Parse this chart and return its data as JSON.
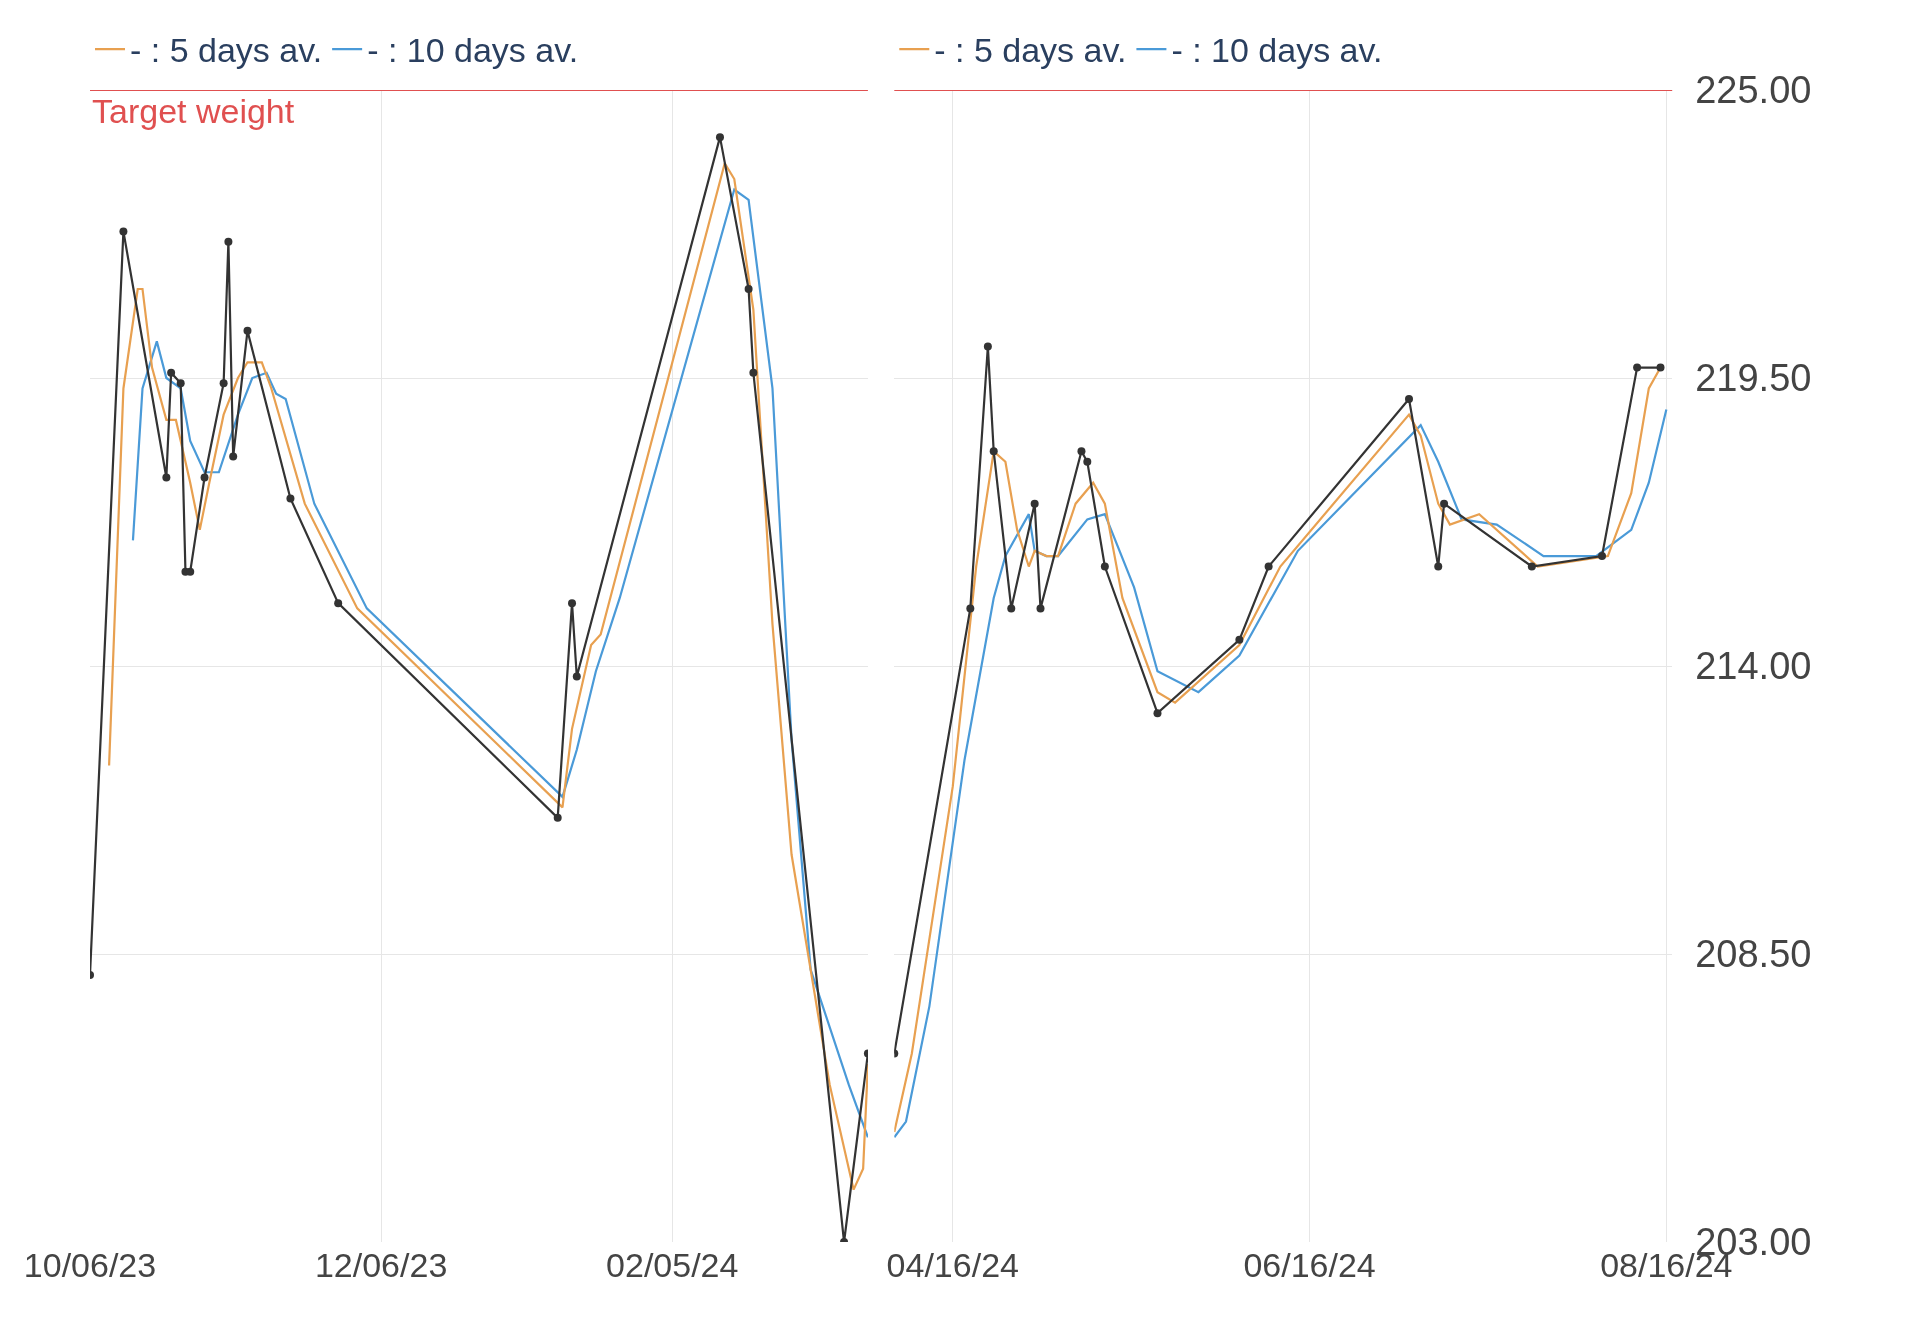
{
  "chart_data": [
    {
      "type": "line",
      "grid": true,
      "legend": "top",
      "tick_labels": "x",
      "line_style": "solid",
      "xlim": [
        "2023-10-06",
        "2024-03-17"
      ],
      "xticks": [
        {
          "value": "2023-10-06",
          "label": "10/06/23"
        },
        {
          "value": "2023-12-06",
          "label": "12/06/23"
        },
        {
          "value": "2024-02-05",
          "label": "02/05/24"
        }
      ],
      "ylim": [
        203,
        225
      ],
      "yticks": [
        {
          "value": 203,
          "label": null
        },
        {
          "value": 208.5,
          "label": null
        },
        {
          "value": 214,
          "label": null
        },
        {
          "value": 219.5,
          "label": null
        },
        {
          "value": 225,
          "label": null
        }
      ],
      "ref_lines": [
        {
          "axis": "y",
          "value": 225,
          "label": "Target weight",
          "color": "#e05050"
        }
      ],
      "series": [
        {
          "color": "#333333",
          "marker": "circle",
          "x": [
            "2023-10-06",
            "2023-10-13",
            "2023-10-22",
            "2023-10-23",
            "2023-10-25",
            "2023-10-26",
            "2023-10-27",
            "2023-10-30",
            "2023-11-03",
            "2023-11-04",
            "2023-11-05",
            "2023-11-08",
            "2023-11-17",
            "2023-11-27",
            "2024-01-12",
            "2024-01-15",
            "2024-01-16",
            "2024-02-15",
            "2024-02-21",
            "2024-02-22",
            "2024-03-12",
            "2024-03-17"
          ],
          "values": [
            208.1,
            222.3,
            217.6,
            219.6,
            219.4,
            215.8,
            215.8,
            217.6,
            219.4,
            222.1,
            218.0,
            220.4,
            217.2,
            215.2,
            211.1,
            215.2,
            213.8,
            224.1,
            221.2,
            219.6,
            203.0,
            206.6
          ]
        },
        {
          "name": "- : 5 days av.",
          "color": "#e8a050",
          "marker": "none",
          "x": [
            "2023-10-10",
            "2023-10-13",
            "2023-10-16",
            "2023-10-17",
            "2023-10-19",
            "2023-10-22",
            "2023-10-24",
            "2023-10-27",
            "2023-10-29",
            "2023-10-31",
            "2023-11-03",
            "2023-11-06",
            "2023-11-08",
            "2023-11-11",
            "2023-11-13",
            "2023-11-20",
            "2023-12-01",
            "2024-01-13",
            "2024-01-15",
            "2024-01-19",
            "2024-01-21",
            "2024-02-16",
            "2024-02-18",
            "2024-02-22",
            "2024-02-26",
            "2024-03-01",
            "2024-03-09",
            "2024-03-14",
            "2024-03-16",
            "2024-03-17"
          ],
          "values": [
            212.1,
            219.3,
            221.2,
            221.2,
            219.7,
            218.7,
            218.7,
            217.5,
            216.6,
            217.5,
            218.8,
            219.5,
            219.8,
            219.8,
            219.3,
            217.1,
            215.1,
            211.3,
            212.8,
            214.4,
            214.6,
            223.6,
            223.3,
            220.8,
            214.8,
            210.4,
            206.0,
            204.0,
            204.4,
            206.4
          ]
        },
        {
          "name": "- : 10 days av.",
          "color": "#4a9ad8",
          "marker": "none",
          "x": [
            "2023-10-15",
            "2023-10-17",
            "2023-10-20",
            "2023-10-22",
            "2023-10-25",
            "2023-10-27",
            "2023-10-30",
            "2023-11-02",
            "2023-11-06",
            "2023-11-09",
            "2023-11-12",
            "2023-11-14",
            "2023-11-16",
            "2023-11-22",
            "2023-12-03",
            "2024-01-13",
            "2024-01-16",
            "2024-01-20",
            "2024-01-25",
            "2024-02-18",
            "2024-02-21",
            "2024-02-26",
            "2024-03-01",
            "2024-03-05",
            "2024-03-13",
            "2024-03-17"
          ],
          "values": [
            216.4,
            219.3,
            220.2,
            219.5,
            219.3,
            218.3,
            217.7,
            217.7,
            218.8,
            219.5,
            219.6,
            219.2,
            219.1,
            217.1,
            215.1,
            211.5,
            212.4,
            213.9,
            215.3,
            223.1,
            222.9,
            219.3,
            212.6,
            208.2,
            206.0,
            205.0
          ]
        }
      ]
    },
    {
      "type": "line",
      "grid": true,
      "legend": "top",
      "line_style": "solid",
      "xlim": [
        "2024-04-06",
        "2024-08-17"
      ],
      "xticks": [
        {
          "value": "2024-04-16",
          "label": "04/16/24"
        },
        {
          "value": "2024-06-16",
          "label": "06/16/24"
        },
        {
          "value": "2024-08-16",
          "label": "08/16/24"
        }
      ],
      "ylim": [
        203,
        225
      ],
      "yticks": [
        {
          "value": 203,
          "label": "203.00"
        },
        {
          "value": 208.5,
          "label": "208.50"
        },
        {
          "value": 214,
          "label": "214.00"
        },
        {
          "value": 219.5,
          "label": "219.50"
        },
        {
          "value": 225,
          "label": "225.00"
        }
      ],
      "ref_lines": [
        {
          "axis": "y",
          "value": 225,
          "label": null,
          "color": "#e05050"
        }
      ],
      "series": [
        {
          "color": "#333333",
          "marker": "circle",
          "x": [
            "2024-04-06",
            "2024-04-19",
            "2024-04-22",
            "2024-04-23",
            "2024-04-26",
            "2024-04-30",
            "2024-05-01",
            "2024-05-08",
            "2024-05-09",
            "2024-05-12",
            "2024-05-21",
            "2024-06-04",
            "2024-06-09",
            "2024-07-03",
            "2024-07-08",
            "2024-07-09",
            "2024-07-24",
            "2024-08-05",
            "2024-08-11",
            "2024-08-15"
          ],
          "values": [
            206.6,
            215.1,
            220.1,
            218.1,
            215.1,
            217.1,
            215.1,
            218.1,
            217.9,
            215.9,
            213.1,
            214.5,
            215.9,
            219.1,
            215.9,
            217.1,
            215.9,
            216.1,
            219.7,
            219.7
          ]
        },
        {
          "name": "- : 5 days av.",
          "color": "#e8a050",
          "marker": "none",
          "x": [
            "2024-04-06",
            "2024-04-09",
            "2024-04-16",
            "2024-04-20",
            "2024-04-23",
            "2024-04-25",
            "2024-04-27",
            "2024-04-29",
            "2024-04-30",
            "2024-05-02",
            "2024-05-04",
            "2024-05-07",
            "2024-05-10",
            "2024-05-12",
            "2024-05-15",
            "2024-05-21",
            "2024-05-24",
            "2024-06-04",
            "2024-06-11",
            "2024-07-03",
            "2024-07-05",
            "2024-07-08",
            "2024-07-10",
            "2024-07-15",
            "2024-07-25",
            "2024-08-06",
            "2024-08-10",
            "2024-08-13",
            "2024-08-15"
          ],
          "values": [
            205.1,
            206.6,
            211.7,
            215.9,
            218.1,
            217.9,
            216.6,
            215.9,
            216.2,
            216.1,
            216.1,
            217.1,
            217.5,
            217.1,
            215.3,
            213.5,
            213.3,
            214.4,
            215.9,
            218.8,
            218.4,
            217.1,
            216.7,
            216.9,
            215.9,
            216.1,
            217.3,
            219.3,
            219.7
          ]
        },
        {
          "name": "- : 10 days av.",
          "color": "#4a9ad8",
          "marker": "none",
          "x": [
            "2024-04-06",
            "2024-04-08",
            "2024-04-12",
            "2024-04-18",
            "2024-04-23",
            "2024-04-25",
            "2024-04-29",
            "2024-04-30",
            "2024-05-02",
            "2024-05-04",
            "2024-05-09",
            "2024-05-12",
            "2024-05-17",
            "2024-05-21",
            "2024-05-28",
            "2024-06-04",
            "2024-06-14",
            "2024-07-05",
            "2024-07-08",
            "2024-07-12",
            "2024-07-18",
            "2024-07-26",
            "2024-08-04",
            "2024-08-10",
            "2024-08-13",
            "2024-08-16"
          ],
          "values": [
            205.0,
            205.3,
            207.5,
            212.2,
            215.3,
            216.1,
            216.9,
            216.2,
            216.1,
            216.1,
            216.8,
            216.9,
            215.5,
            213.9,
            213.5,
            214.2,
            216.2,
            218.6,
            217.9,
            216.8,
            216.7,
            216.1,
            216.1,
            216.6,
            217.5,
            218.9
          ]
        }
      ]
    }
  ]
}
